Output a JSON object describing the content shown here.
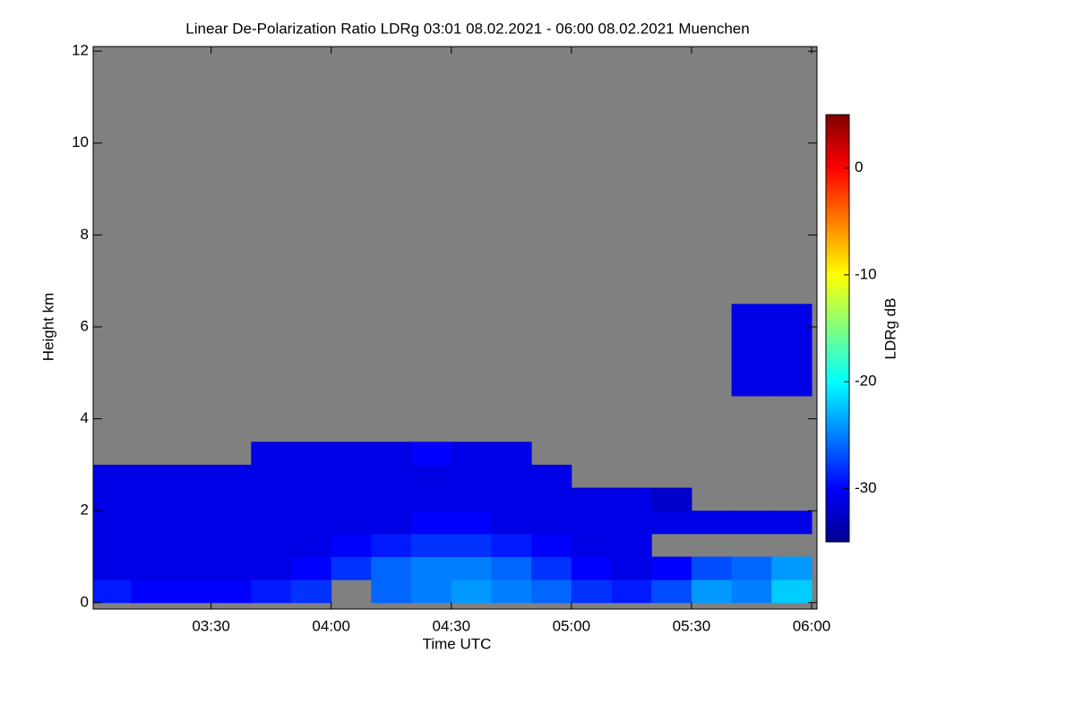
{
  "chart_data": {
    "type": "heatmap",
    "title": "Linear De-Polarization Ratio LDRg   03:01 08.02.2021 - 06:00 08.02.2021 Muenchen",
    "x_label": "Time UTC",
    "y_label": "Height km",
    "colorbar_label": "LDRg dB",
    "xlim": [
      3.0167,
      6.0
    ],
    "xticks": [
      {
        "value": 3.5,
        "label": "03:30"
      },
      {
        "value": 4.0,
        "label": "04:00"
      },
      {
        "value": 4.5,
        "label": "04:30"
      },
      {
        "value": 5.0,
        "label": "05:00"
      },
      {
        "value": 5.5,
        "label": "05:30"
      },
      {
        "value": 6.0,
        "label": "06:00"
      }
    ],
    "ylim": [
      -0.14,
      12.1
    ],
    "yticks": [
      0,
      2,
      4,
      6,
      8,
      10,
      12
    ],
    "clim": [
      -35,
      5
    ],
    "cticks": [
      -30,
      -20,
      -10,
      0
    ],
    "background_color": "#808080",
    "x_edges": [
      3.0,
      3.1667,
      3.3333,
      3.5,
      3.6667,
      3.8333,
      4.0,
      4.1667,
      4.3333,
      4.5,
      4.6667,
      4.8333,
      5.0,
      5.1667,
      5.3333,
      5.5,
      5.6667,
      5.8333,
      6.0
    ],
    "y_edges": [
      0,
      0.5,
      1,
      1.5,
      2,
      2.5,
      3,
      3.5,
      4,
      4.5,
      5,
      5.5,
      6,
      6.5,
      7
    ],
    "z": [
      [
        -29,
        -30,
        -30,
        -30,
        -29,
        -28,
        null,
        -26,
        -25,
        -24,
        -25,
        -26,
        -28,
        -29,
        -27,
        -24,
        -25,
        -22
      ],
      [
        -31,
        -31,
        -31,
        -31,
        -31,
        -30,
        -28,
        -26,
        -25,
        -25,
        -26,
        -28,
        -30,
        -31,
        -30,
        -27,
        -26,
        -24
      ],
      [
        -31,
        -31,
        -31,
        -31,
        -31,
        -31,
        -30,
        -29,
        -28,
        -28,
        -29,
        -30,
        -31,
        -31,
        null,
        null,
        null,
        null
      ],
      [
        -31,
        -31,
        -31,
        -31,
        -31,
        -31,
        -31,
        -31,
        -30,
        -30,
        -31,
        -31,
        -31,
        -31,
        -31,
        -31,
        -31,
        -31
      ],
      [
        -31,
        -31,
        -31,
        -31,
        -31,
        -31,
        -31,
        -31,
        -31,
        -31,
        -31,
        -31,
        -31,
        -31,
        -32,
        null,
        null,
        null
      ],
      [
        -31,
        -31,
        -31,
        -31,
        -31,
        -31,
        -31,
        -31,
        -31,
        -31,
        -31,
        -31,
        null,
        null,
        null,
        null,
        null,
        null
      ],
      [
        null,
        null,
        null,
        null,
        -31,
        -31,
        -31,
        -31,
        -30,
        -31,
        -31,
        null,
        null,
        null,
        null,
        null,
        null,
        null
      ],
      [
        null,
        null,
        null,
        null,
        null,
        null,
        null,
        null,
        null,
        null,
        null,
        null,
        null,
        null,
        null,
        null,
        null,
        null
      ],
      [
        null,
        null,
        null,
        null,
        null,
        null,
        null,
        null,
        null,
        null,
        null,
        null,
        null,
        null,
        null,
        null,
        null,
        null
      ],
      [
        null,
        null,
        null,
        null,
        null,
        null,
        null,
        null,
        null,
        null,
        null,
        null,
        null,
        null,
        null,
        null,
        -31,
        -31
      ],
      [
        null,
        null,
        null,
        null,
        null,
        null,
        null,
        null,
        null,
        null,
        null,
        null,
        null,
        null,
        null,
        null,
        -31,
        -31
      ],
      [
        null,
        null,
        null,
        null,
        null,
        null,
        null,
        null,
        null,
        null,
        null,
        null,
        null,
        null,
        null,
        null,
        -31,
        -31
      ],
      [
        null,
        null,
        null,
        null,
        null,
        null,
        null,
        null,
        null,
        null,
        null,
        null,
        null,
        null,
        null,
        null,
        -31,
        -31
      ],
      [
        null,
        null,
        null,
        null,
        null,
        null,
        null,
        null,
        null,
        null,
        null,
        null,
        null,
        null,
        null,
        null,
        null,
        null
      ]
    ]
  }
}
